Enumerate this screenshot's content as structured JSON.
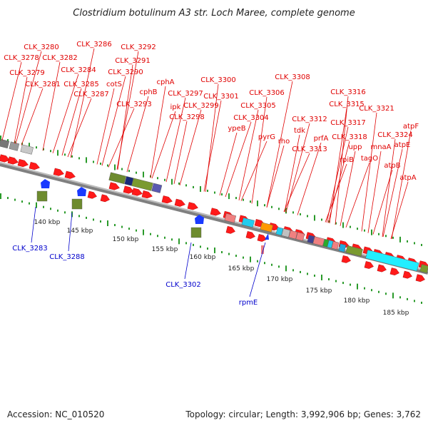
{
  "title": "Clostridium botulinum A3 str. Loch Maree, complete genome",
  "footer": {
    "accession": "Accession: NC_010520",
    "summary": "Topology: circular; Length: 3,992,906 bp; Genes: 3,762"
  },
  "colors": {
    "cds": "#ff1a1a",
    "label_top": "#e00000",
    "label_bottom": "#0000cc",
    "tick": "#2a9a2a",
    "backbone": "#888888"
  },
  "gene_labels_top": [
    "CLK_3280",
    "CLK_3286",
    "CLK_3292",
    "CLK_3278",
    "CLK_3282",
    "CLK_3291",
    "CLK_3279",
    "CLK_3284",
    "CLK_3290",
    "CLK_3281",
    "CLK_3285",
    "cotS",
    "cphA",
    "CLK_3300",
    "CLK_3308",
    "CLK_3287",
    "cphB",
    "CLK_3297",
    "CLK_3301",
    "CLK_3306",
    "CLK_3316",
    "CLK_3293",
    "ipk",
    "CLK_3299",
    "CLK_3305",
    "CLK_3315",
    "CLK_3321",
    "CLK_3298",
    "CLK_3304",
    "CLK_3312",
    "CLK_3317",
    "atpF",
    "ypeB",
    "tdk",
    "CLK_3324",
    "pyrG",
    "prfA",
    "CLK_3318",
    "atpE",
    "rho",
    "upp",
    "mnaA",
    "CLK_3313",
    "tagO",
    "rpiB",
    "atpB",
    "atpA"
  ],
  "gene_labels_bottom": [
    "CLK_3283",
    "CLK_3288",
    "CLK_3302",
    "rpmE"
  ],
  "kbp_ticks": [
    "140 kbp",
    "145 kbp",
    "150 kbp",
    "155 kbp",
    "160 kbp",
    "165 kbp",
    "170 kbp",
    "175 kbp",
    "180 kbp",
    "185 kbp"
  ]
}
